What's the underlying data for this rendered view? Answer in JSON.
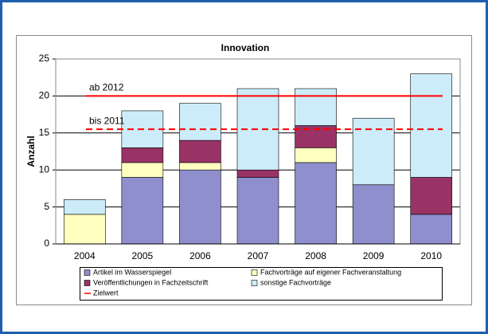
{
  "chart_data": {
    "type": "stacked_bar",
    "title": "Innovation",
    "y_label": "Anzahl",
    "categories": [
      "2004",
      "2005",
      "2006",
      "2007",
      "2008",
      "2009",
      "2010"
    ],
    "series": [
      {
        "name": "Artikel im Wasserspiegel",
        "color": "#8e8fcc",
        "values": [
          0,
          9,
          10,
          9,
          11,
          8,
          4
        ]
      },
      {
        "name": "Fachvorträge auf eigener Fachveranstaltung",
        "color": "#ffffc0",
        "values": [
          4,
          2,
          1,
          0,
          2,
          0,
          0
        ]
      },
      {
        "name": "Veröffentlichungen in Fachzeitschrift",
        "color": "#993366",
        "values": [
          0,
          2,
          3,
          1,
          3,
          0,
          5
        ]
      },
      {
        "name": "sonstige Fachvorträge",
        "color": "#ccecfa",
        "values": [
          2,
          5,
          5,
          11,
          5,
          9,
          14
        ]
      }
    ],
    "target_legend": "Zielwert",
    "target_color": "#ff0000",
    "target_lines": [
      {
        "label": "ab 2012",
        "value": 20,
        "dashed": false
      },
      {
        "label": "bis 2011",
        "value": 15.5,
        "dashed": true
      }
    ],
    "ylim": [
      0,
      25
    ],
    "yticks": [
      0,
      5,
      10,
      15,
      20,
      25
    ],
    "grid": true
  }
}
